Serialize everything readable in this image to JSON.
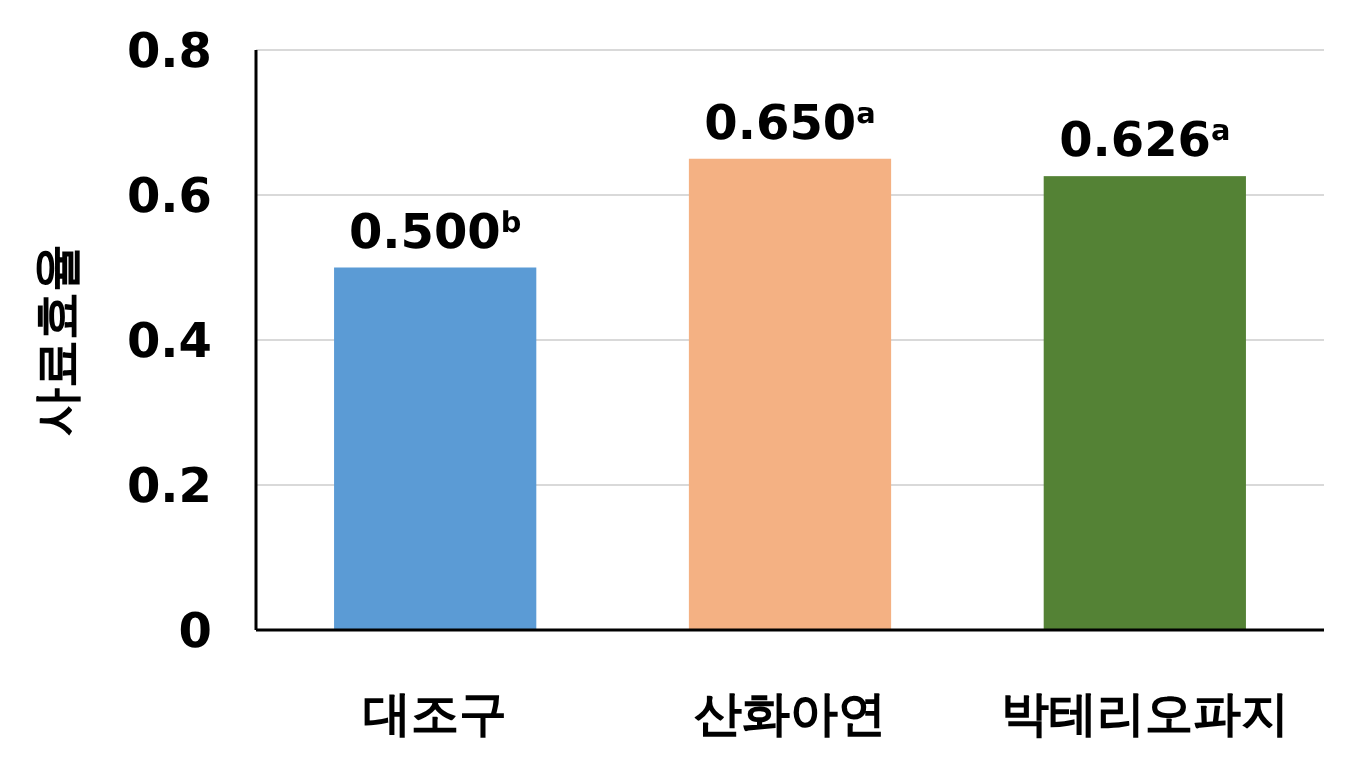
{
  "chart_data": {
    "type": "bar",
    "ylabel": "사료효율",
    "categories": [
      "대조구",
      "산화아연",
      "박테리오파지"
    ],
    "values": [
      0.5,
      0.65,
      0.626
    ],
    "colors": [
      "#5b9bd5",
      "#f4b183",
      "#548235"
    ],
    "value_labels": [
      "0.500$^{b}$",
      "0.650$^{a}$",
      "0.626$^{a}$"
    ],
    "ylim": [
      0,
      0.8
    ],
    "yticks": [
      0,
      0.2,
      0.4,
      0.6,
      0.8
    ],
    "grid": "y"
  }
}
